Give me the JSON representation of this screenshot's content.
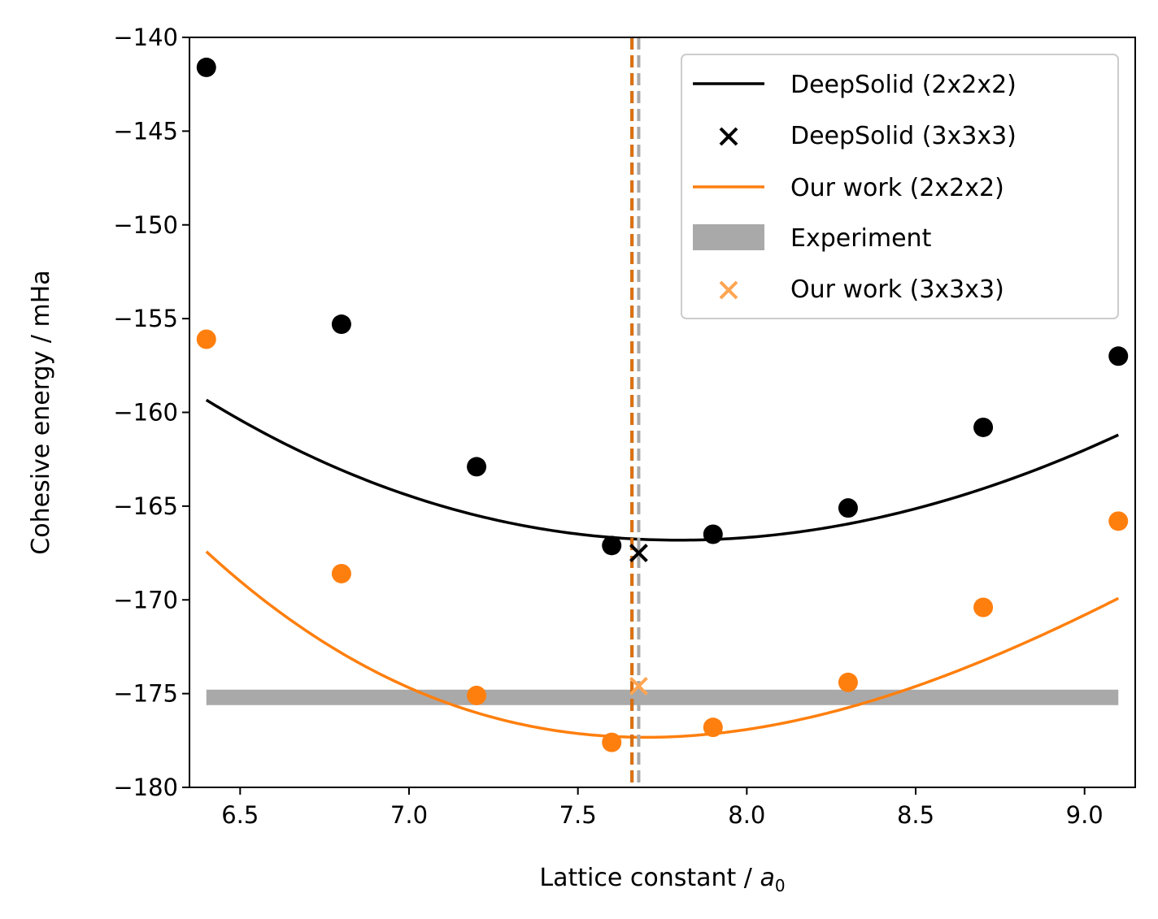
{
  "chart_data": {
    "type": "line",
    "xlabel_text": "Lattice constant / ",
    "xlabel_symbol": "a",
    "xlabel_subscript": "0",
    "ylabel": "Cohesive energy / mHa",
    "xlim": [
      6.35,
      9.15
    ],
    "ylim": [
      -180,
      -140
    ],
    "xticks": [
      6.5,
      7.0,
      7.5,
      8.0,
      8.5,
      9.0
    ],
    "xtick_labels": [
      "6.5",
      "7.0",
      "7.5",
      "8.0",
      "8.5",
      "9.0"
    ],
    "yticks": [
      -180,
      -175,
      -170,
      -165,
      -160,
      -155,
      -150,
      -145,
      -140
    ],
    "ytick_labels": [
      "−180",
      "−175",
      "−170",
      "−165",
      "−160",
      "−155",
      "−150",
      "−145",
      "−140"
    ],
    "grid": false,
    "legend_position": "top-right",
    "legend": [
      {
        "label": "DeepSolid (2x2x2)",
        "kind": "line",
        "color": "#000000"
      },
      {
        "label": "DeepSolid (3x3x3)",
        "kind": "x",
        "color": "#000000"
      },
      {
        "label": "Our work (2x2x2)",
        "kind": "line",
        "color": "#ff7f0e"
      },
      {
        "label": "Experiment",
        "kind": "band",
        "color": "#a9a9a9"
      },
      {
        "label": "Our work (3x3x3)",
        "kind": "x",
        "color": "#ffa552"
      }
    ],
    "series": [
      {
        "name": "DeepSolid (2x2x2)",
        "color": "#000000",
        "points": [
          {
            "x": 6.4,
            "y": -141.6
          },
          {
            "x": 6.8,
            "y": -155.3
          },
          {
            "x": 7.2,
            "y": -162.9
          },
          {
            "x": 7.6,
            "y": -167.1
          },
          {
            "x": 7.9,
            "y": -166.5
          },
          {
            "x": 8.3,
            "y": -165.1
          },
          {
            "x": 8.7,
            "y": -160.8
          },
          {
            "x": 9.1,
            "y": -157.0
          }
        ],
        "fit": {
          "a": 3.5585,
          "c": -166.815,
          "d": -0.1823,
          "m": 7.8
        },
        "min_x": 7.66
      },
      {
        "name": "Our work (2x2x2)",
        "color": "#ff7f0e",
        "points": [
          {
            "x": 6.4,
            "y": -156.1
          },
          {
            "x": 6.8,
            "y": -168.6
          },
          {
            "x": 7.2,
            "y": -175.1
          },
          {
            "x": 7.6,
            "y": -177.6
          },
          {
            "x": 7.9,
            "y": -176.8
          },
          {
            "x": 8.3,
            "y": -174.4
          },
          {
            "x": 8.7,
            "y": -170.4
          },
          {
            "x": 9.1,
            "y": -165.8
          }
        ],
        "fit": {
          "a": 4.86,
          "c": -177.33,
          "d": -0.77,
          "m": 7.7
        },
        "min_x": 7.66
      }
    ],
    "markers_3x3x3": [
      {
        "name": "DeepSolid (3x3x3)",
        "x": 7.68,
        "y": -167.5,
        "color": "#000000"
      },
      {
        "name": "Our work (3x3x3)",
        "x": 7.68,
        "y": -174.6,
        "color": "#ffa552"
      }
    ],
    "experiment": {
      "y": -175.2,
      "x_start": 6.4,
      "x_end": 9.1,
      "color": "#a9a9a9",
      "vline_x": 7.68
    }
  }
}
